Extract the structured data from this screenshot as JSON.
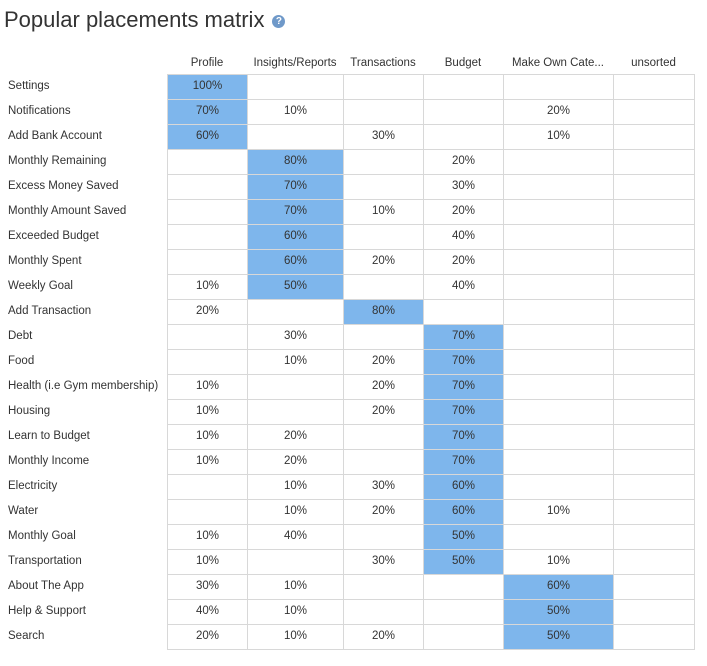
{
  "page": {
    "title": "Popular placements matrix",
    "help_icon": "?"
  },
  "chart_data": {
    "type": "table",
    "columns": [
      "Profile",
      "Insights/Reports",
      "Transactions",
      "Budget",
      "Make Own Cate...",
      "unsorted"
    ],
    "rows": [
      {
        "label": "Settings",
        "values": [
          "100%",
          "",
          "",
          "",
          "",
          ""
        ],
        "highlight": 0
      },
      {
        "label": "Notifications",
        "values": [
          "70%",
          "10%",
          "",
          "",
          "20%",
          ""
        ],
        "highlight": 0
      },
      {
        "label": "Add Bank Account",
        "values": [
          "60%",
          "",
          "30%",
          "",
          "10%",
          ""
        ],
        "highlight": 0
      },
      {
        "label": "Monthly Remaining",
        "values": [
          "",
          "80%",
          "",
          "20%",
          "",
          ""
        ],
        "highlight": 1
      },
      {
        "label": "Excess Money Saved",
        "values": [
          "",
          "70%",
          "",
          "30%",
          "",
          ""
        ],
        "highlight": 1
      },
      {
        "label": "Monthly Amount Saved",
        "values": [
          "",
          "70%",
          "10%",
          "20%",
          "",
          ""
        ],
        "highlight": 1
      },
      {
        "label": "Exceeded Budget",
        "values": [
          "",
          "60%",
          "",
          "40%",
          "",
          ""
        ],
        "highlight": 1
      },
      {
        "label": "Monthly Spent",
        "values": [
          "",
          "60%",
          "20%",
          "20%",
          "",
          ""
        ],
        "highlight": 1
      },
      {
        "label": "Weekly Goal",
        "values": [
          "10%",
          "50%",
          "",
          "40%",
          "",
          ""
        ],
        "highlight": 1
      },
      {
        "label": "Add Transaction",
        "values": [
          "20%",
          "",
          "80%",
          "",
          "",
          ""
        ],
        "highlight": 2
      },
      {
        "label": "Debt",
        "values": [
          "",
          "30%",
          "",
          "70%",
          "",
          ""
        ],
        "highlight": 3
      },
      {
        "label": "Food",
        "values": [
          "",
          "10%",
          "20%",
          "70%",
          "",
          ""
        ],
        "highlight": 3
      },
      {
        "label": "Health (i.e Gym membership)",
        "values": [
          "10%",
          "",
          "20%",
          "70%",
          "",
          ""
        ],
        "highlight": 3
      },
      {
        "label": "Housing",
        "values": [
          "10%",
          "",
          "20%",
          "70%",
          "",
          ""
        ],
        "highlight": 3
      },
      {
        "label": "Learn to Budget",
        "values": [
          "10%",
          "20%",
          "",
          "70%",
          "",
          ""
        ],
        "highlight": 3
      },
      {
        "label": "Monthly Income",
        "values": [
          "10%",
          "20%",
          "",
          "70%",
          "",
          ""
        ],
        "highlight": 3
      },
      {
        "label": "Electricity",
        "values": [
          "",
          "10%",
          "30%",
          "60%",
          "",
          ""
        ],
        "highlight": 3
      },
      {
        "label": "Water",
        "values": [
          "",
          "10%",
          "20%",
          "60%",
          "10%",
          ""
        ],
        "highlight": 3
      },
      {
        "label": "Monthly Goal",
        "values": [
          "10%",
          "40%",
          "",
          "50%",
          "",
          ""
        ],
        "highlight": 3
      },
      {
        "label": "Transportation",
        "values": [
          "10%",
          "",
          "30%",
          "50%",
          "10%",
          ""
        ],
        "highlight": 3
      },
      {
        "label": "About The App",
        "values": [
          "30%",
          "10%",
          "",
          "",
          "60%",
          ""
        ],
        "highlight": 4
      },
      {
        "label": "Help & Support",
        "values": [
          "40%",
          "10%",
          "",
          "",
          "50%",
          ""
        ],
        "highlight": 4
      },
      {
        "label": "Search",
        "values": [
          "20%",
          "10%",
          "20%",
          "",
          "50%",
          ""
        ],
        "highlight": 4
      }
    ],
    "colors": {
      "highlight": "#7eb6ec",
      "grid": "#d8d8d8",
      "text": "#333333",
      "help_icon": "#6f99c9"
    }
  }
}
